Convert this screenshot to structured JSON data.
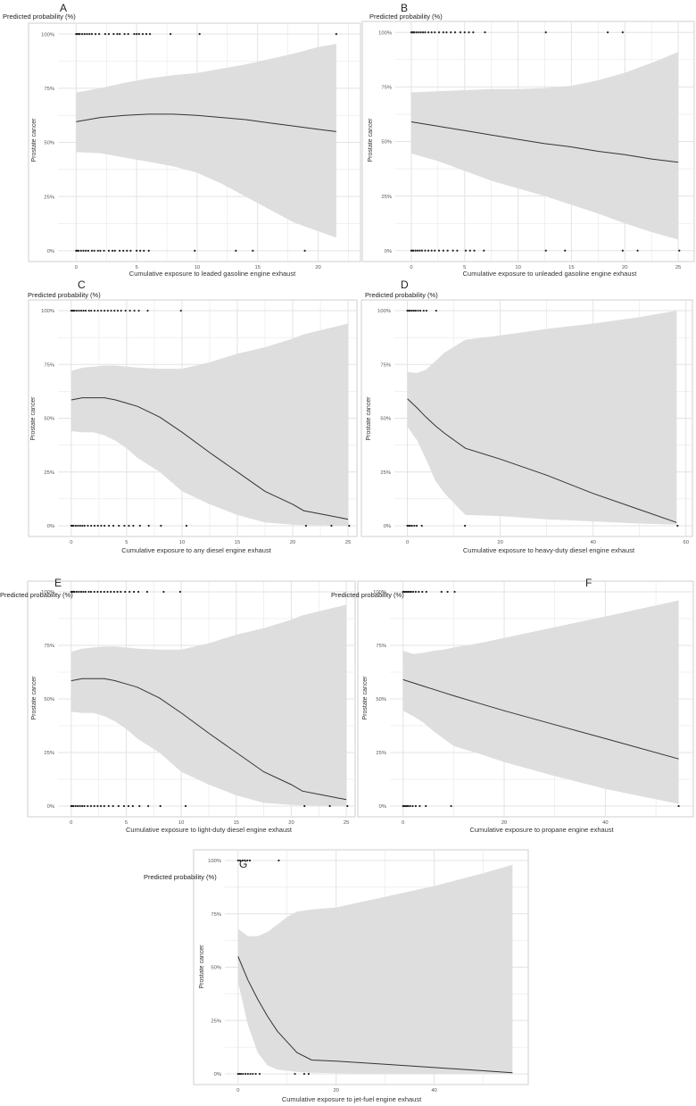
{
  "figure": {
    "y_header": "Predicted probability (%)",
    "y_axis_label": "Prostate cancer"
  },
  "colors": {
    "ribbon": "#dedede",
    "line": "#333333",
    "grid": "#e3e3e3",
    "panel_border": "#cfcfcf",
    "points": "#222222",
    "text": "#333333"
  },
  "chart_data": [
    {
      "panel": "A",
      "type": "line",
      "xlabel": "Cumulative exposure to leaded gasoline engine exhaust",
      "ylabel": "Prostate cancer",
      "y_title": "Predicted probability (%)",
      "xlim": [
        -1.5,
        23.5
      ],
      "ylim": [
        -5,
        105
      ],
      "xticks": [
        0,
        5,
        10,
        15,
        20
      ],
      "yticks": [
        0,
        25,
        50,
        75,
        100
      ],
      "ytick_labels": [
        "0%",
        "25%",
        "50%",
        "75%",
        "100%"
      ],
      "x": [
        0,
        2,
        4,
        6,
        8,
        10,
        12,
        14,
        16,
        18,
        20,
        21.5
      ],
      "fit": [
        59.5,
        61.5,
        62.5,
        63,
        63,
        62.5,
        61.5,
        60.5,
        59,
        57.5,
        56,
        55
      ],
      "lower": [
        45.5,
        45,
        43,
        41,
        39,
        36,
        31,
        25,
        19,
        13,
        9,
        6
      ],
      "upper": [
        73,
        75,
        77.5,
        79.5,
        81,
        82,
        84,
        86,
        88.5,
        91,
        94,
        95.5
      ],
      "points_at_100": [
        0,
        0.1,
        0.2,
        0.3,
        0.5,
        0.7,
        0.9,
        1.1,
        1.3,
        1.6,
        1.9,
        2.4,
        2.7,
        3.1,
        3.4,
        3.6,
        4.0,
        4.3,
        4.8,
        5.0,
        5.2,
        5.5,
        5.8,
        6.1,
        7.8,
        10.2,
        21.5
      ],
      "points_at_0": [
        0,
        0.1,
        0.2,
        0.4,
        0.6,
        0.8,
        1.0,
        1.3,
        1.5,
        1.8,
        2.0,
        2.3,
        2.7,
        3.0,
        3.2,
        3.6,
        3.9,
        4.2,
        4.5,
        5.0,
        5.3,
        5.6,
        6.0,
        9.8,
        13.2,
        14.6,
        18.9
      ]
    },
    {
      "panel": "B",
      "type": "line",
      "xlabel": "Cumulative exposure to unleaded gasoline engine exhaust",
      "ylabel": "Prostate cancer",
      "y_title": "Predicted probability (%)",
      "xlim": [
        -1.5,
        26.5
      ],
      "ylim": [
        -5,
        105
      ],
      "xticks": [
        0,
        5,
        10,
        15,
        20,
        25
      ],
      "yticks": [
        0,
        25,
        50,
        75,
        100
      ],
      "ytick_labels": [
        "0%",
        "25%",
        "50%",
        "75%",
        "100%"
      ],
      "x": [
        0,
        2.5,
        5,
        7.5,
        10,
        12.5,
        15,
        17.5,
        20,
        22.5,
        25
      ],
      "fit": [
        59,
        57,
        55,
        53,
        51,
        49,
        47.5,
        45.5,
        44,
        42,
        40.5
      ],
      "lower": [
        44.5,
        41,
        36.5,
        32,
        28.5,
        25,
        21,
        17,
        12.5,
        8.5,
        5
      ],
      "upper": [
        72.5,
        73,
        73.5,
        74,
        74,
        74.5,
        75.5,
        78,
        81.5,
        86,
        91
      ],
      "points_at_100": [
        0,
        0.1,
        0.2,
        0.3,
        0.5,
        0.7,
        0.9,
        1.1,
        1.3,
        1.6,
        1.9,
        2.2,
        2.6,
        3.0,
        3.3,
        3.7,
        4.1,
        4.6,
        5.0,
        5.4,
        5.8,
        6.9,
        12.6,
        18.4,
        19.8
      ],
      "points_at_0": [
        0,
        0.1,
        0.2,
        0.4,
        0.6,
        0.8,
        1.0,
        1.3,
        1.6,
        1.9,
        2.2,
        2.6,
        3.0,
        3.4,
        3.9,
        4.3,
        5.1,
        5.5,
        5.9,
        6.8,
        12.6,
        14.4,
        19.8,
        21.2,
        25.1
      ]
    },
    {
      "panel": "C",
      "type": "line",
      "xlabel": "Cumulative exposure to any diesel engine exhaust",
      "ylabel": "Prostate cancer",
      "y_title": "Predicted probability (%)",
      "xlim": [
        -1.2,
        25.8
      ],
      "ylim": [
        -5,
        105
      ],
      "xticks": [
        0,
        5,
        10,
        15,
        20,
        25
      ],
      "yticks": [
        0,
        25,
        50,
        75,
        100
      ],
      "ytick_labels": [
        "0%",
        "25%",
        "50%",
        "75%",
        "100%"
      ],
      "x": [
        0,
        1,
        2,
        3,
        4,
        5,
        6,
        8,
        10,
        12.5,
        15,
        17.5,
        20,
        21,
        23,
        25
      ],
      "fit": [
        58.5,
        59.5,
        59.5,
        59.5,
        58.5,
        57,
        55.5,
        50.5,
        43.5,
        34,
        25,
        16,
        10,
        7,
        5,
        3
      ],
      "lower": [
        44,
        43.5,
        43.5,
        42,
        39.5,
        36,
        31.5,
        25,
        16,
        10,
        5,
        1.5,
        0.5,
        0.3,
        0.2,
        0.1
      ],
      "upper": [
        72,
        73.5,
        74,
        74.5,
        74.5,
        74,
        73.5,
        73,
        73,
        76,
        80,
        83,
        87,
        89,
        91.5,
        94
      ],
      "points_at_100": [
        0,
        0.1,
        0.2,
        0.3,
        0.5,
        0.7,
        0.9,
        1.1,
        1.3,
        1.6,
        1.8,
        2.1,
        2.4,
        2.7,
        3.0,
        3.3,
        3.6,
        3.9,
        4.2,
        4.5,
        4.9,
        5.3,
        5.7,
        6.1,
        6.9,
        9.9
      ],
      "points_at_0": [
        0,
        0.1,
        0.2,
        0.4,
        0.6,
        0.8,
        1.0,
        1.2,
        1.5,
        1.8,
        2.1,
        2.4,
        2.7,
        3.0,
        3.4,
        3.8,
        4.3,
        4.8,
        5.2,
        5.6,
        6.2,
        7.0,
        8.1,
        10.4,
        21.2,
        23.5,
        25.1
      ]
    },
    {
      "panel": "D",
      "type": "line",
      "xlabel": "Cumulative exposure to heavy-duty diesel engine exhaust",
      "ylabel": "Prostate cancer",
      "y_title": "Predicted probability (%)",
      "xlim": [
        -2.8,
        61.4
      ],
      "ylim": [
        -5,
        105
      ],
      "xticks": [
        0,
        20,
        40,
        60
      ],
      "yticks": [
        0,
        25,
        50,
        75,
        100
      ],
      "ytick_labels": [
        "0%",
        "25%",
        "50%",
        "75%",
        "100%"
      ],
      "x": [
        0,
        2,
        4,
        6,
        8,
        12.5,
        20,
        30,
        40,
        50,
        58
      ],
      "fit": [
        59,
        55,
        50.5,
        46.5,
        43,
        36,
        31,
        23.5,
        15,
        7.5,
        1.5
      ],
      "lower": [
        46,
        40,
        31,
        21,
        15,
        5,
        4.5,
        3,
        2,
        1,
        0.5
      ],
      "upper": [
        71.5,
        71,
        72.5,
        76.5,
        80.5,
        86.5,
        88.5,
        91.5,
        94,
        97,
        100
      ],
      "points_at_100": [
        0,
        0.3,
        0.6,
        1.0,
        1.4,
        1.8,
        2.3,
        2.8,
        3.5,
        4.1,
        6.2
      ],
      "points_at_0": [
        0,
        0.3,
        0.6,
        1.0,
        1.5,
        2.0,
        3.1,
        12.4,
        58.2
      ]
    },
    {
      "panel": "E",
      "type": "line",
      "xlabel": "Cumulative exposure to light-duty diesel engine exhaust",
      "ylabel": "Prostate cancer",
      "y_title": "Predicted probability (%)",
      "xlim": [
        -1.2,
        25.8
      ],
      "ylim": [
        -5,
        105
      ],
      "xticks": [
        0,
        5,
        10,
        15,
        20,
        25
      ],
      "yticks": [
        0,
        25,
        50,
        75,
        100
      ],
      "ytick_labels": [
        "0%",
        "25%",
        "50%",
        "75%",
        "100%"
      ],
      "x": [
        0,
        1,
        2,
        3,
        4,
        5,
        6,
        8,
        10,
        12.5,
        15,
        17.5,
        20,
        21,
        23,
        25
      ],
      "fit": [
        58.5,
        59.5,
        59.5,
        59.5,
        58.5,
        57,
        55.5,
        50.5,
        43.5,
        34,
        25,
        16,
        10,
        7,
        5,
        3
      ],
      "lower": [
        44,
        43.5,
        43.5,
        42,
        39.5,
        36,
        31.5,
        25,
        16,
        10,
        5,
        1.5,
        0.5,
        0.3,
        0.2,
        0.1
      ],
      "upper": [
        72,
        73.5,
        74,
        74.5,
        74.5,
        74,
        73.5,
        73,
        73,
        76,
        80,
        83,
        87,
        89,
        91.5,
        94
      ],
      "points_at_100": [
        0,
        0.1,
        0.2,
        0.3,
        0.5,
        0.7,
        0.9,
        1.1,
        1.3,
        1.6,
        1.8,
        2.1,
        2.4,
        2.7,
        3.0,
        3.3,
        3.6,
        3.9,
        4.2,
        4.5,
        4.9,
        5.3,
        5.7,
        6.1,
        6.9,
        8.4,
        9.9
      ],
      "points_at_0": [
        0,
        0.1,
        0.2,
        0.4,
        0.6,
        0.8,
        1.0,
        1.2,
        1.5,
        1.8,
        2.1,
        2.4,
        2.7,
        3.0,
        3.4,
        3.8,
        4.3,
        4.8,
        5.2,
        5.6,
        6.2,
        7.0,
        8.1,
        10.4,
        21.2,
        23.5,
        25.1
      ]
    },
    {
      "panel": "F",
      "type": "line",
      "xlabel": "Cumulative exposure to propane engine exhaust",
      "ylabel": "Prostate cancer",
      "y_title": "Predicted probability (%)",
      "xlim": [
        -2.6,
        57.4
      ],
      "ylim": [
        -5,
        105
      ],
      "xticks": [
        0,
        20,
        40
      ],
      "yticks": [
        0,
        25,
        50,
        75,
        100
      ],
      "ytick_labels": [
        "0%",
        "25%",
        "50%",
        "75%",
        "100%"
      ],
      "x": [
        0,
        2,
        4,
        6,
        8,
        10,
        15,
        20,
        30,
        40,
        54.5
      ],
      "fit": [
        59,
        57.5,
        56,
        54.5,
        53,
        51.5,
        48,
        44.5,
        38,
        31.5,
        22
      ],
      "lower": [
        44.5,
        42,
        39,
        35,
        31.5,
        28,
        24.5,
        20.5,
        14,
        8,
        1
      ],
      "upper": [
        72.5,
        71,
        71.5,
        72.5,
        73,
        74,
        76,
        78.5,
        83.5,
        88.5,
        96
      ],
      "points_at_100": [
        0,
        0.2,
        0.4,
        0.7,
        1.0,
        1.3,
        1.6,
        2.0,
        2.5,
        3.1,
        3.8,
        4.6,
        7.6,
        8.8,
        10.2
      ],
      "points_at_0": [
        0,
        0.2,
        0.4,
        0.7,
        1.0,
        1.4,
        1.9,
        2.5,
        3.3,
        4.5,
        9.5,
        54.5
      ]
    },
    {
      "panel": "G",
      "type": "line",
      "xlabel": "Cumulative exposure to jet-fuel engine exhaust",
      "ylabel": "Prostate cancer",
      "y_title": "Predicted probability (%)",
      "xlim": [
        -2.7,
        59.2
      ],
      "ylim": [
        -5,
        105
      ],
      "xticks": [
        0,
        20,
        40
      ],
      "yticks": [
        0,
        25,
        50,
        75,
        100
      ],
      "ytick_labels": [
        "0%",
        "25%",
        "50%",
        "75%",
        "100%"
      ],
      "x": [
        0,
        2,
        4,
        6,
        8,
        10,
        12,
        15,
        20,
        30,
        40,
        50,
        56
      ],
      "fit": [
        55,
        44,
        35,
        27,
        20,
        15,
        10,
        6.5,
        6,
        4.5,
        3,
        1.5,
        0.5
      ],
      "lower": [
        43,
        23,
        10,
        4,
        2,
        1.5,
        1,
        0.5,
        0.3,
        0.2,
        0.1,
        0.1,
        0
      ],
      "upper": [
        68,
        64.5,
        64.5,
        66.5,
        70,
        73.5,
        76,
        77,
        78,
        83,
        88,
        94,
        98
      ],
      "points_at_100": [
        0,
        0.4,
        0.9,
        1.4,
        1.9,
        2.4,
        8.3
      ],
      "points_at_0": [
        0,
        0.3,
        0.6,
        1.0,
        1.5,
        2.0,
        2.5,
        3.0,
        3.6,
        4.4,
        11.6,
        13.5,
        14.4
      ]
    }
  ]
}
